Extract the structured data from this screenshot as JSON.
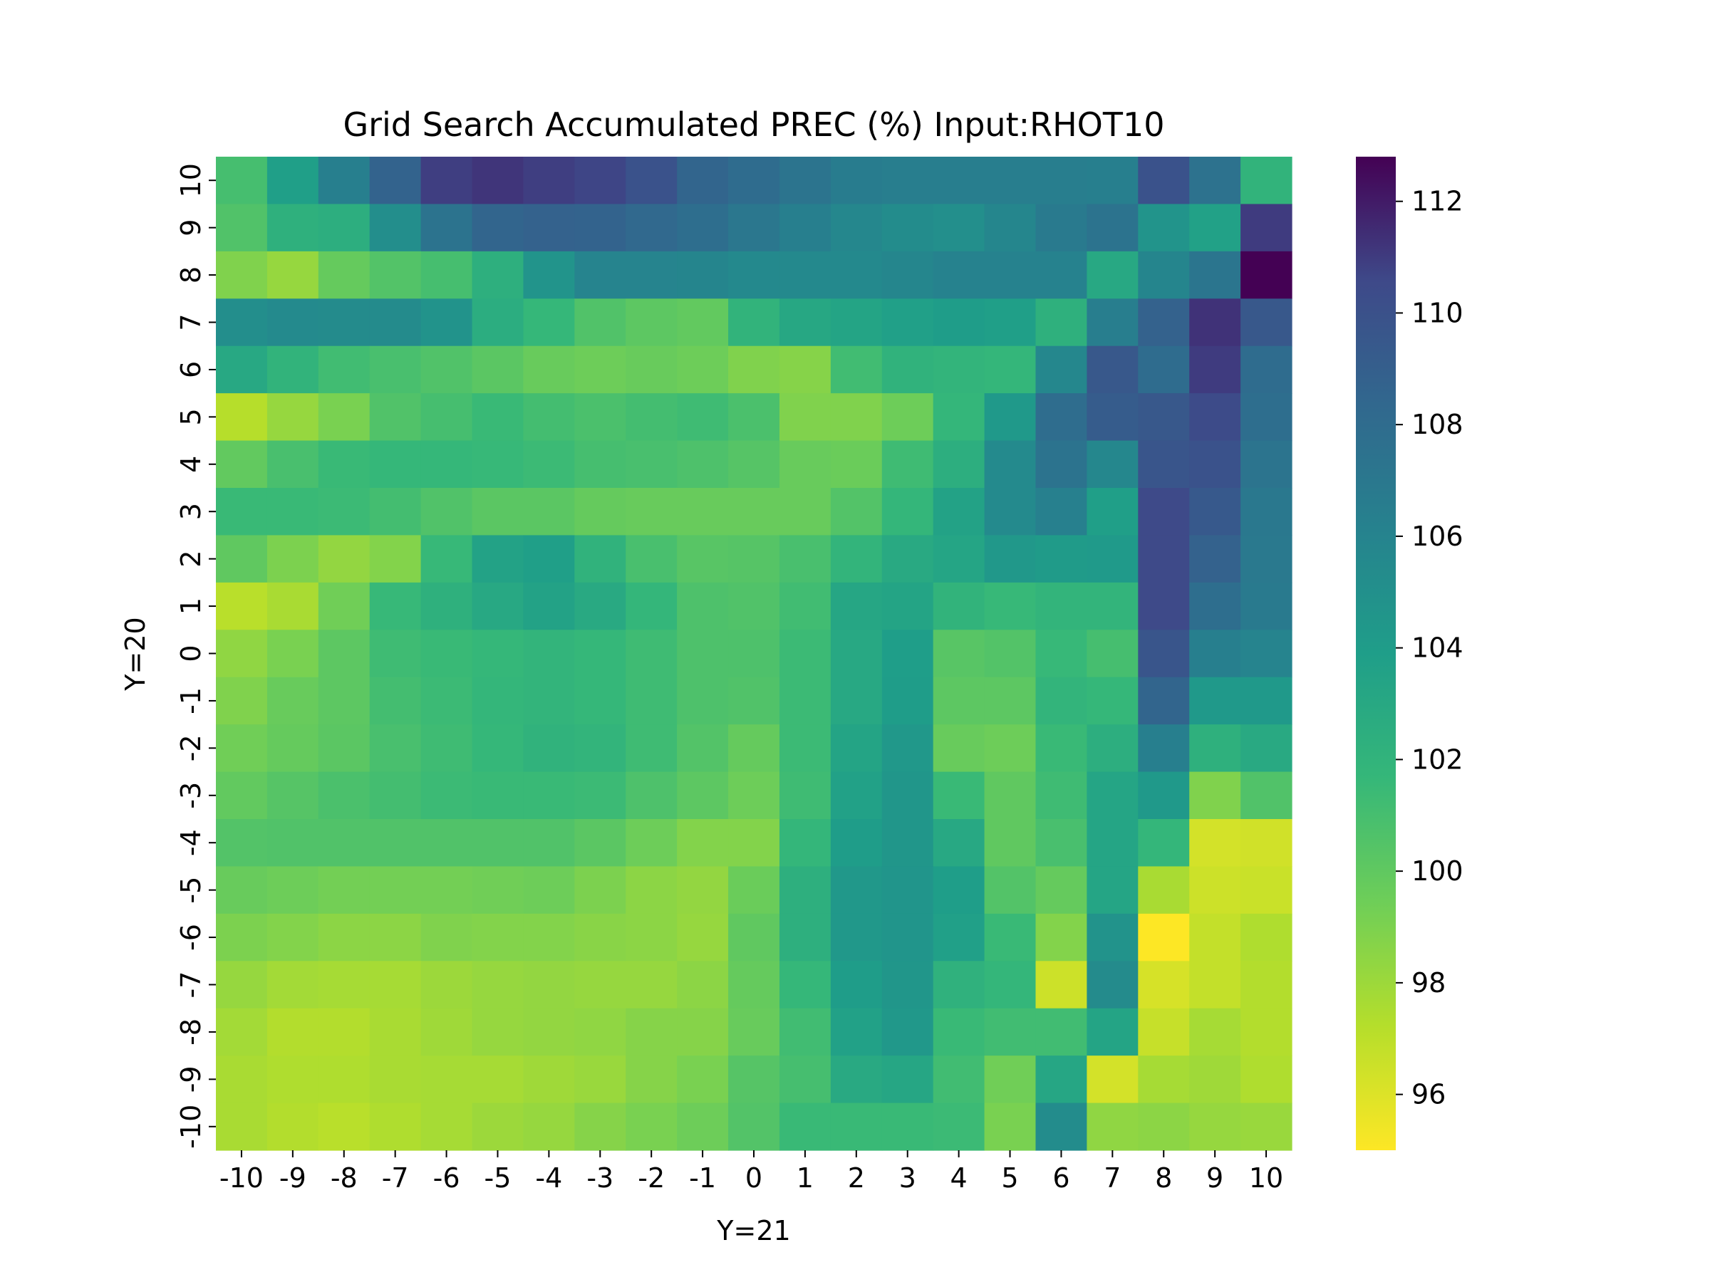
{
  "chart_data": {
    "type": "heatmap",
    "title": "Grid Search Accumulated PREC (%) Input:RHOT10",
    "xlabel": "Y=21",
    "ylabel": "Y=20",
    "x_categories": [
      "-10",
      "-9",
      "-8",
      "-7",
      "-6",
      "-5",
      "-4",
      "-3",
      "-2",
      "-1",
      "0",
      "1",
      "2",
      "3",
      "4",
      "5",
      "6",
      "7",
      "8",
      "9",
      "10"
    ],
    "y_categories": [
      "10",
      "9",
      "8",
      "7",
      "6",
      "5",
      "4",
      "3",
      "2",
      "1",
      "0",
      "-1",
      "-2",
      "-3",
      "-4",
      "-5",
      "-6",
      "-7",
      "-8",
      "-9",
      "-10"
    ],
    "colorscale": "viridis_r",
    "vmin": 95.0,
    "vmax": 112.8,
    "colorbar_ticks": [
      96,
      98,
      100,
      102,
      104,
      106,
      108,
      110,
      112
    ],
    "colorbar_tick_labels": [
      "96",
      "98",
      "100",
      "102",
      "104",
      "106",
      "108",
      "110",
      "112"
    ],
    "values": [
      [
        101.0,
        103.8,
        106.4,
        108.7,
        110.9,
        111.2,
        110.9,
        110.7,
        109.9,
        108.6,
        108.0,
        107.3,
        106.6,
        106.5,
        106.5,
        106.5,
        106.5,
        106.4,
        109.9,
        107.5,
        102.0
      ],
      [
        100.6,
        102.3,
        102.5,
        105.2,
        107.4,
        108.6,
        108.8,
        108.7,
        108.3,
        107.8,
        107.1,
        106.4,
        105.7,
        105.3,
        105.1,
        105.8,
        106.8,
        107.4,
        104.7,
        103.6,
        111.0
      ],
      [
        98.9,
        98.2,
        99.8,
        100.5,
        101.0,
        102.4,
        104.7,
        106.0,
        106.0,
        105.9,
        105.6,
        105.6,
        105.6,
        105.8,
        106.1,
        106.1,
        106.1,
        103.0,
        105.9,
        107.2,
        112.8
      ],
      [
        105.2,
        105.5,
        105.4,
        105.4,
        104.8,
        102.6,
        101.7,
        100.6,
        100.1,
        99.9,
        102.0,
        103.1,
        103.4,
        103.7,
        104.0,
        103.8,
        102.3,
        106.5,
        108.8,
        111.3,
        109.5
      ],
      [
        103.0,
        102.0,
        101.2,
        100.9,
        100.6,
        100.2,
        99.7,
        99.5,
        99.7,
        99.5,
        98.9,
        98.7,
        101.2,
        102.1,
        101.9,
        101.8,
        105.7,
        109.5,
        108.0,
        111.0,
        108.0
      ],
      [
        97.2,
        98.2,
        99.1,
        100.6,
        101.0,
        101.5,
        101.1,
        100.8,
        101.1,
        101.3,
        100.8,
        98.9,
        98.9,
        99.5,
        101.8,
        104.3,
        107.9,
        109.2,
        109.5,
        110.4,
        107.8
      ],
      [
        99.9,
        100.9,
        101.5,
        101.7,
        101.7,
        101.6,
        101.4,
        101.0,
        100.9,
        100.7,
        100.4,
        99.7,
        99.6,
        101.3,
        102.5,
        105.5,
        107.4,
        105.7,
        109.7,
        109.9,
        107.3
      ],
      [
        101.5,
        101.5,
        101.4,
        101.1,
        100.6,
        100.2,
        100.2,
        99.8,
        99.7,
        99.7,
        99.7,
        99.7,
        100.5,
        101.8,
        103.5,
        105.5,
        106.3,
        103.8,
        110.5,
        109.4,
        107.0
      ],
      [
        100.0,
        99.0,
        98.3,
        98.8,
        101.6,
        103.5,
        103.8,
        102.1,
        100.9,
        100.3,
        100.4,
        100.9,
        101.9,
        102.9,
        103.3,
        104.4,
        104.1,
        104.2,
        110.5,
        108.8,
        106.9
      ],
      [
        97.1,
        97.6,
        99.4,
        101.6,
        102.3,
        103.0,
        103.5,
        102.9,
        101.8,
        100.7,
        100.6,
        101.2,
        103.2,
        103.4,
        102.0,
        101.6,
        101.9,
        101.9,
        110.5,
        107.8,
        106.8
      ],
      [
        98.4,
        99.1,
        100.1,
        101.3,
        101.5,
        101.7,
        101.9,
        101.7,
        101.3,
        100.7,
        100.7,
        101.4,
        103.0,
        103.9,
        100.3,
        100.5,
        101.6,
        101.0,
        109.7,
        106.4,
        106.0
      ],
      [
        98.9,
        99.7,
        100.1,
        101.1,
        101.4,
        101.8,
        101.9,
        101.7,
        101.3,
        100.7,
        100.6,
        101.4,
        103.0,
        104.0,
        100.1,
        100.1,
        101.9,
        101.7,
        108.6,
        104.3,
        104.3
      ],
      [
        99.4,
        99.8,
        100.2,
        100.9,
        101.3,
        101.7,
        102.1,
        101.9,
        101.3,
        100.5,
        99.8,
        101.4,
        103.4,
        104.4,
        99.7,
        99.5,
        101.5,
        102.5,
        106.4,
        102.3,
        102.9
      ],
      [
        99.9,
        100.4,
        100.8,
        101.1,
        101.4,
        101.5,
        101.5,
        101.4,
        100.7,
        100.1,
        99.5,
        101.3,
        103.6,
        104.5,
        101.5,
        100.0,
        101.3,
        103.3,
        104.3,
        98.9,
        100.6
      ],
      [
        100.5,
        100.6,
        100.6,
        100.6,
        100.6,
        100.6,
        100.6,
        100.2,
        99.5,
        98.8,
        98.8,
        101.8,
        104.0,
        104.5,
        103.0,
        100.0,
        100.9,
        103.3,
        101.8,
        96.3,
        96.4
      ],
      [
        99.7,
        99.5,
        99.3,
        99.3,
        99.3,
        99.4,
        99.5,
        99.0,
        98.5,
        98.3,
        99.6,
        102.4,
        104.4,
        104.6,
        103.9,
        100.5,
        99.8,
        103.3,
        97.6,
        96.5,
        96.6
      ],
      [
        99.0,
        98.8,
        98.5,
        98.5,
        98.9,
        98.8,
        98.8,
        98.6,
        98.5,
        98.2,
        100.0,
        102.4,
        104.4,
        104.6,
        103.7,
        101.5,
        98.8,
        104.8,
        95.0,
        96.8,
        97.4
      ],
      [
        98.2,
        97.8,
        97.7,
        97.7,
        98.0,
        98.2,
        98.3,
        98.2,
        98.2,
        98.5,
        99.8,
        101.7,
        104.0,
        104.5,
        102.2,
        101.8,
        96.5,
        105.4,
        96.2,
        96.8,
        97.3
      ],
      [
        97.8,
        97.3,
        97.3,
        97.6,
        97.9,
        98.2,
        98.3,
        98.4,
        98.7,
        98.7,
        99.7,
        101.2,
        103.6,
        104.4,
        101.5,
        101.2,
        101.2,
        103.4,
        96.7,
        97.7,
        97.3
      ],
      [
        97.6,
        97.4,
        97.4,
        97.6,
        97.7,
        97.7,
        97.9,
        98.1,
        98.7,
        99.1,
        100.4,
        101.0,
        102.9,
        103.2,
        101.2,
        99.4,
        103.2,
        96.3,
        97.7,
        97.9,
        97.4
      ],
      [
        97.6,
        97.3,
        97.1,
        97.4,
        97.7,
        98.0,
        98.2,
        98.7,
        99.1,
        99.5,
        100.5,
        101.5,
        101.5,
        101.5,
        101.4,
        99.1,
        105.3,
        98.4,
        98.5,
        98.2,
        98.1
      ]
    ]
  }
}
